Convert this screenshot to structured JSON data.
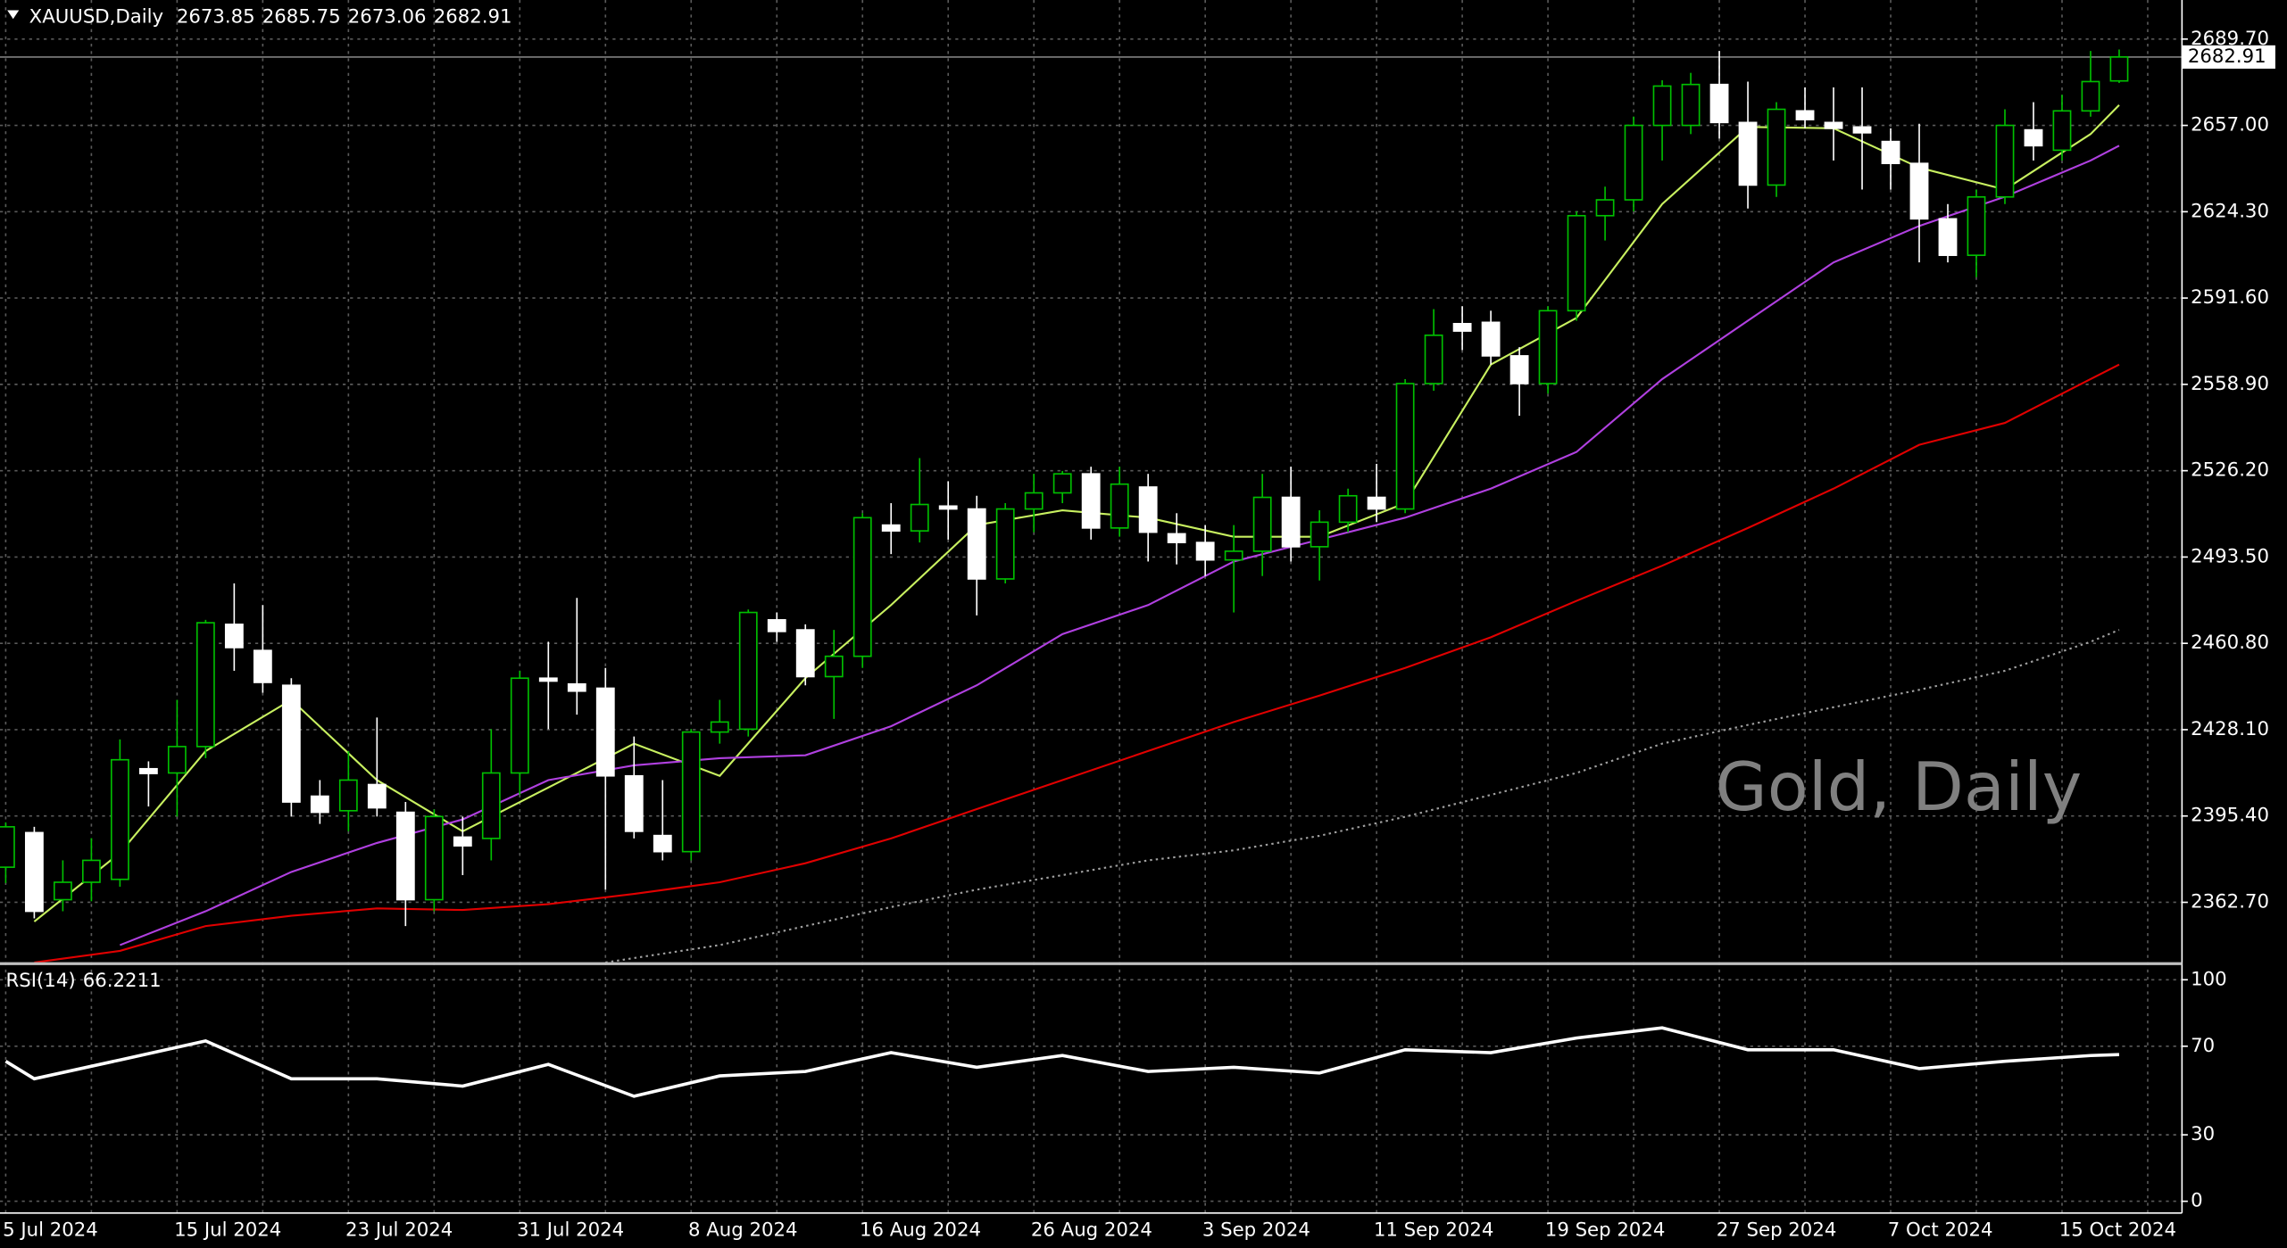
{
  "chart_data": [
    {
      "type": "candlestick",
      "title": "XAUUSD,Daily",
      "watermark": "Gold, Daily",
      "up_color": "#00c000",
      "down_color": "#ffffff",
      "categories": [
        "5 Jul 2024",
        null,
        null,
        null,
        null,
        null,
        "15 Jul 2024",
        null,
        null,
        null,
        null,
        null,
        "23 Jul 2024",
        null,
        null,
        null,
        null,
        null,
        "31 Jul 2024",
        null,
        null,
        null,
        null,
        null,
        "8 Aug 2024",
        null,
        null,
        null,
        null,
        null,
        "16 Aug 2024",
        null,
        null,
        null,
        null,
        null,
        "26 Aug 2024",
        null,
        null,
        null,
        null,
        null,
        "3 Sep 2024",
        null,
        null,
        null,
        null,
        null,
        "11 Sep 2024",
        null,
        null,
        null,
        null,
        null,
        "19 Sep 2024",
        null,
        null,
        null,
        null,
        null,
        "27 Sep 2024",
        null,
        null,
        null,
        null,
        null,
        "7 Oct 2024",
        null,
        null,
        null,
        null,
        null,
        "15 Oct 2024",
        null,
        null
      ],
      "open": [
        2376,
        2389.1,
        2363.7,
        2370.3,
        2371.4,
        2413.3,
        2411.7,
        2421.7,
        2468,
        2458.1,
        2444.9,
        2402.9,
        2397.4,
        2407.3,
        2396.8,
        2363.7,
        2387.4,
        2386.9,
        2411.7,
        2447.6,
        2445.4,
        2443.8,
        2410.6,
        2388,
        2381.9,
        2427.2,
        2428.3,
        2469.7,
        2465.9,
        2448.2,
        2455.9,
        2505.6,
        2503.4,
        2512.8,
        2511.7,
        2485.2,
        2511.7,
        2517.8,
        2525,
        2504.5,
        2520,
        2502.3,
        2499,
        2492.4,
        2495.7,
        2516.1,
        2497.4,
        2506.7,
        2516.1,
        2511.7,
        2559.2,
        2581.9,
        2582.4,
        2569.7,
        2559.2,
        2586.8,
        2622.8,
        2628.8,
        2657,
        2657,
        2672.5,
        2658.1,
        2634.4,
        2662.5,
        2658.1,
        2656.4,
        2650.9,
        2642.6,
        2621.6,
        2607.8,
        2629.9,
        2655.3,
        2647.6,
        2662.5,
        2673.85
      ],
      "high": [
        2393,
        2391.3,
        2378.6,
        2387,
        2424.4,
        2416.1,
        2439.4,
        2469.7,
        2483.5,
        2475.3,
        2447.6,
        2409,
        2420,
        2432.7,
        2400.7,
        2397.9,
        2395.2,
        2428.3,
        2450.4,
        2461.4,
        2478,
        2451.5,
        2425.5,
        2409,
        2428.3,
        2439.4,
        2473.6,
        2472.5,
        2468,
        2465.9,
        2510.1,
        2513.9,
        2531,
        2522.2,
        2516.7,
        2513.9,
        2525,
        2526.1,
        2527.7,
        2527.7,
        2525,
        2510.1,
        2505.6,
        2505.6,
        2525,
        2527.7,
        2511.2,
        2519.4,
        2528.8,
        2560.9,
        2587.4,
        2588.5,
        2586.8,
        2573,
        2588.5,
        2624.4,
        2633.8,
        2660.3,
        2674.1,
        2676.9,
        2685.2,
        2673.6,
        2665.8,
        2671.4,
        2671.4,
        2671.4,
        2655.9,
        2657.6,
        2627.2,
        2632.7,
        2663.1,
        2665.8,
        2668.6,
        2685.2,
        2685.75
      ],
      "low": [
        2370,
        2356.6,
        2359.3,
        2363.1,
        2368.6,
        2399,
        2395.2,
        2417.3,
        2450.4,
        2442.1,
        2395.2,
        2392.4,
        2389.6,
        2395.2,
        2353.7,
        2359.3,
        2373,
        2378.6,
        2403.4,
        2428.3,
        2433.8,
        2367.5,
        2386.9,
        2378.6,
        2378.6,
        2422.8,
        2425.5,
        2461.4,
        2444.9,
        2432.2,
        2451.5,
        2494.6,
        2499,
        2500.1,
        2471.4,
        2483.5,
        2502.9,
        2513.9,
        2500.1,
        2501.2,
        2491.8,
        2490.7,
        2486.3,
        2472.5,
        2486.3,
        2491.8,
        2484.6,
        2502.9,
        2506.7,
        2510.1,
        2556.5,
        2571.9,
        2566.4,
        2547,
        2555.4,
        2583,
        2613.4,
        2624.4,
        2643.7,
        2653.7,
        2652,
        2625.5,
        2629.9,
        2655.9,
        2643.7,
        2632.7,
        2632.7,
        2605.1,
        2605.1,
        2599.5,
        2627.2,
        2643.7,
        2643.7,
        2660.3,
        2673.06
      ],
      "close": [
        2391.3,
        2359.3,
        2370.3,
        2378.6,
        2416.7,
        2411.5,
        2421.7,
        2468.6,
        2459.2,
        2446,
        2400.7,
        2396.8,
        2409,
        2398.5,
        2363.7,
        2395.2,
        2384.1,
        2411.7,
        2447.6,
        2446.5,
        2442.7,
        2410.6,
        2389.6,
        2381.9,
        2427.2,
        2431,
        2472.5,
        2465.3,
        2448.2,
        2455.9,
        2508.4,
        2503.4,
        2513.4,
        2511.7,
        2485.2,
        2511.7,
        2517.8,
        2525,
        2504.5,
        2521.1,
        2502.9,
        2499,
        2492.4,
        2495.7,
        2516.1,
        2497.4,
        2506.7,
        2516.7,
        2511.7,
        2559.2,
        2577.5,
        2579.1,
        2569.7,
        2559.2,
        2586.8,
        2622.8,
        2628.8,
        2657,
        2671.9,
        2672.5,
        2658.1,
        2634.4,
        2663.1,
        2659.2,
        2655.9,
        2654.2,
        2642.6,
        2621.6,
        2607.8,
        2629.9,
        2657,
        2649.3,
        2662.5,
        2673.6,
        2682.91
      ],
      "series": [
        {
          "color": "#c8f060",
          "style": "solid",
          "x": [
            1,
            4,
            7,
            10,
            13,
            16,
            19,
            22,
            25,
            28,
            31,
            34,
            37,
            40,
            43,
            46,
            49,
            52,
            55,
            58,
            61,
            64,
            67,
            70,
            73,
            74
          ],
          "values": [
            2355.4,
            2381.4,
            2420,
            2439.4,
            2409,
            2389.6,
            2406.2,
            2422.8,
            2410.6,
            2447.6,
            2475.3,
            2505.6,
            2511.2,
            2508.4,
            2501.2,
            2501.2,
            2513.9,
            2566.4,
            2584.1,
            2627.2,
            2656.4,
            2655.9,
            2641,
            2632.7,
            2653.7,
            2664.7
          ]
        },
        {
          "color": "#b040e0",
          "style": "solid",
          "x": [
            4,
            7,
            10,
            13,
            16,
            19,
            22,
            25,
            28,
            31,
            34,
            37,
            40,
            43,
            46,
            49,
            52,
            55,
            58,
            61,
            64,
            67,
            70,
            73,
            74
          ],
          "values": [
            2346.5,
            2359.3,
            2374.2,
            2385.2,
            2394.1,
            2409,
            2414.6,
            2417.3,
            2418.4,
            2429.4,
            2444.9,
            2464.3,
            2475.3,
            2491.8,
            2500.1,
            2508.4,
            2519.4,
            2533.3,
            2560.9,
            2583,
            2605.1,
            2618.9,
            2630,
            2643.7,
            2649.3
          ]
        },
        {
          "color": "#e00000",
          "style": "solid",
          "x": [
            1,
            4,
            7,
            10,
            13,
            16,
            19,
            22,
            25,
            28,
            31,
            34,
            37,
            40,
            43,
            46,
            49,
            52,
            55,
            58,
            61,
            64,
            67,
            70,
            73,
            74
          ],
          "values": [
            2339.9,
            2344.3,
            2353.7,
            2357.6,
            2360.4,
            2359.8,
            2362,
            2365.9,
            2370.3,
            2377.5,
            2386.9,
            2398,
            2409,
            2420,
            2431,
            2441,
            2451.5,
            2463.1,
            2476.9,
            2490.2,
            2504.5,
            2519.4,
            2536,
            2544.3,
            2560.9,
            2566.4
          ]
        },
        {
          "color": "#a0a0a0",
          "style": "dotted",
          "x": [
            21,
            22,
            25,
            28,
            31,
            34,
            37,
            40,
            43,
            46,
            49,
            52,
            55,
            58,
            61,
            64,
            67,
            70,
            73,
            74
          ],
          "values": [
            2339.9,
            2341.6,
            2346.5,
            2353.7,
            2360.9,
            2367.5,
            2373,
            2378.6,
            2382.4,
            2387.9,
            2395.1,
            2403.4,
            2411.7,
            2422.8,
            2429.9,
            2436.6,
            2443.2,
            2450.4,
            2461.4,
            2465.9
          ]
        }
      ],
      "xlim": [
        -0.2,
        76.2
      ],
      "ylim": [
        2340,
        2704.5
      ],
      "yticks": [
        {
          "value": 2362.7,
          "label": "2362.70"
        },
        {
          "value": 2395.4,
          "label": "2395.40"
        },
        {
          "value": 2428.1,
          "label": "2428.10"
        },
        {
          "value": 2460.8,
          "label": "2460.80"
        },
        {
          "value": 2493.5,
          "label": "2493.50"
        },
        {
          "value": 2526.2,
          "label": "2526.20"
        },
        {
          "value": 2558.9,
          "label": "2558.90"
        },
        {
          "value": 2591.6,
          "label": "2591.60"
        },
        {
          "value": 2624.3,
          "label": "2624.30"
        },
        {
          "value": 2657,
          "label": "2657.00"
        },
        {
          "value": 2689.7,
          "label": "2689.70"
        }
      ],
      "grid": true
    },
    {
      "type": "line",
      "title": "RSI(14)",
      "series": [
        {
          "color": "#ffffff",
          "x": [
            0,
            1,
            4,
            7,
            10,
            13,
            16,
            19,
            22,
            25,
            28,
            31,
            34,
            37,
            40,
            43,
            46,
            49,
            52,
            55,
            58,
            61,
            64,
            67,
            70,
            73,
            74
          ],
          "values": [
            63.2,
            55.3,
            63.8,
            72.4,
            55.3,
            55.3,
            52,
            61.8,
            47.4,
            56.6,
            58.6,
            67.1,
            60.5,
            65.8,
            58.6,
            60.5,
            57.9,
            68.4,
            67.1,
            73.7,
            78.3,
            68.4,
            68.4,
            59.9,
            63.2,
            65.8,
            66.2211
          ]
        }
      ],
      "xlim": [
        -0.2,
        76.2
      ],
      "ylim": [
        -5.3,
        106.6
      ],
      "yticks": [
        0,
        30,
        70,
        100
      ],
      "grid": true
    }
  ]
}
